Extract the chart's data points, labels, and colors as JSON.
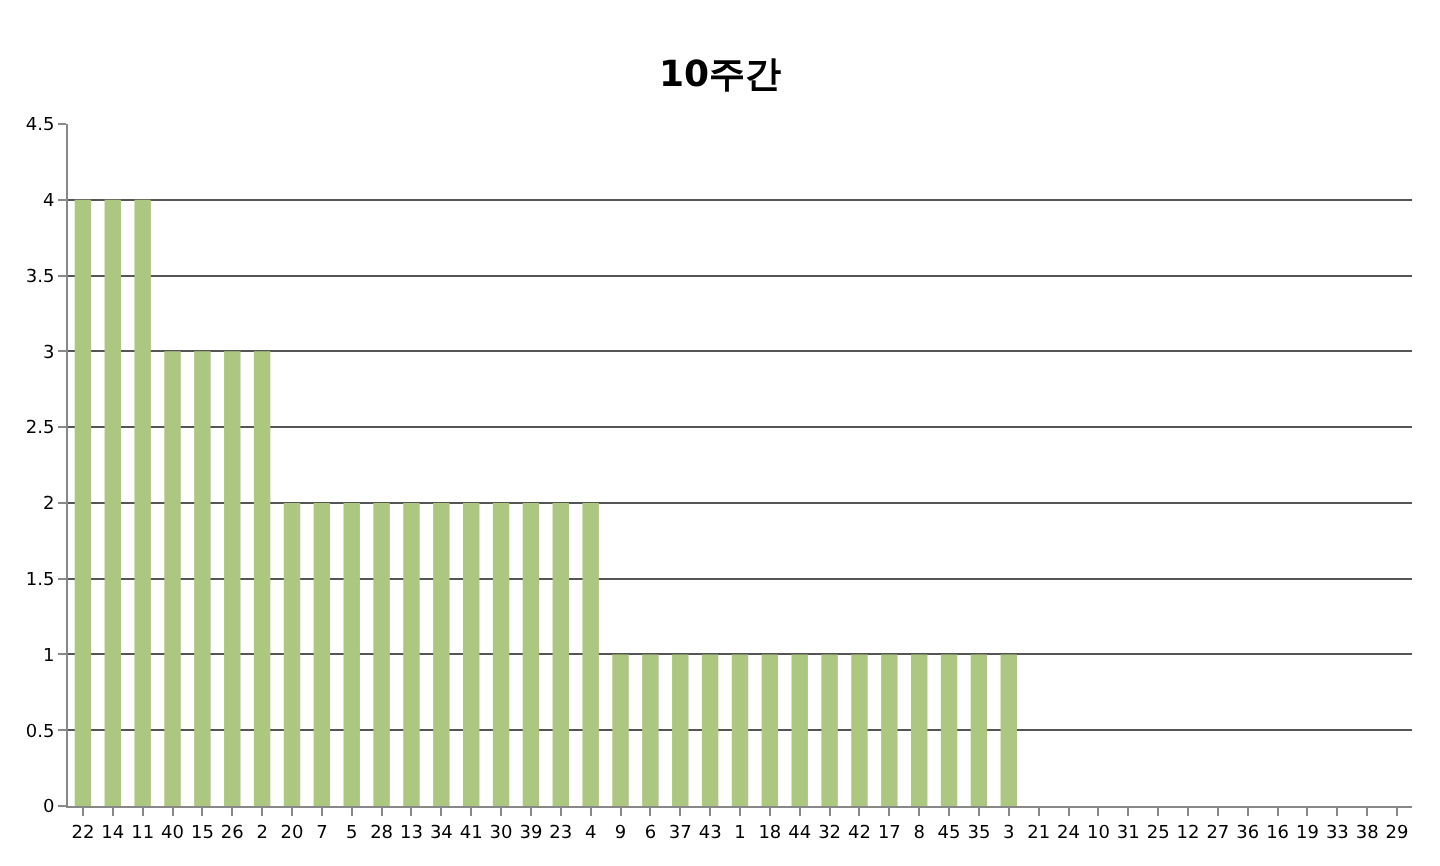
{
  "chart_data": {
    "type": "bar",
    "title": "10주간",
    "categories": [
      "22",
      "14",
      "11",
      "40",
      "15",
      "26",
      "2",
      "20",
      "7",
      "5",
      "28",
      "13",
      "34",
      "41",
      "30",
      "39",
      "23",
      "4",
      "9",
      "6",
      "37",
      "43",
      "1",
      "18",
      "44",
      "32",
      "42",
      "17",
      "8",
      "45",
      "35",
      "3",
      "21",
      "24",
      "10",
      "31",
      "25",
      "12",
      "27",
      "36",
      "16",
      "19",
      "33",
      "38",
      "29"
    ],
    "values": [
      4,
      4,
      4,
      3,
      3,
      3,
      3,
      2,
      2,
      2,
      2,
      2,
      2,
      2,
      2,
      2,
      2,
      2,
      1,
      1,
      1,
      1,
      1,
      1,
      1,
      1,
      1,
      1,
      1,
      1,
      1,
      1,
      0,
      0,
      0,
      0,
      0,
      0,
      0,
      0,
      0,
      0,
      0,
      0,
      0
    ],
    "color": "#acc77f",
    "ylim": [
      0,
      4.5
    ],
    "yticks": [
      0,
      0.5,
      1,
      1.5,
      2,
      2.5,
      3,
      3.5,
      4,
      4.5
    ],
    "grid": "y"
  }
}
